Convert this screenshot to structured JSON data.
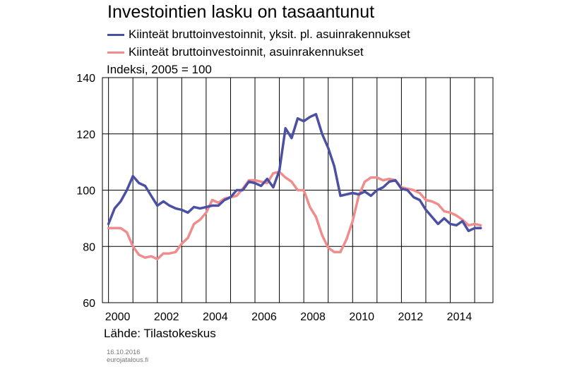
{
  "title": "Investointien lasku on tasaantunut",
  "unit_label": "Indeksi, 2005 = 100",
  "source": "Lähde: Tilastokeskus",
  "date_stamp": "16.10.2016",
  "site_stamp": "eurojatalous.fi",
  "colors": {
    "series1": "#4b50a3",
    "series2": "#f08c8c",
    "grid": "#000000"
  },
  "chart_data": {
    "type": "line",
    "title": "Investointien lasku on tasaantunut",
    "ylabel": "Indeksi, 2005 = 100",
    "xlim": [
      1999.75,
      2015.75
    ],
    "ylim": [
      60,
      140
    ],
    "yticks": [
      60,
      80,
      100,
      120,
      140
    ],
    "xticks": [
      "2000",
      "2002",
      "2004",
      "2006",
      "2008",
      "2010",
      "2012",
      "2014"
    ],
    "grid": true,
    "legend_position": "top-left",
    "x": [
      2000.0,
      2000.25,
      2000.5,
      2000.75,
      2001.0,
      2001.25,
      2001.5,
      2001.75,
      2002.0,
      2002.25,
      2002.5,
      2002.75,
      2003.0,
      2003.25,
      2003.5,
      2003.75,
      2004.0,
      2004.25,
      2004.5,
      2004.75,
      2005.0,
      2005.25,
      2005.5,
      2005.75,
      2006.0,
      2006.25,
      2006.5,
      2006.75,
      2007.0,
      2007.25,
      2007.5,
      2007.75,
      2008.0,
      2008.25,
      2008.5,
      2008.75,
      2009.0,
      2009.25,
      2009.5,
      2009.75,
      2010.0,
      2010.25,
      2010.5,
      2010.75,
      2011.0,
      2011.25,
      2011.5,
      2011.75,
      2012.0,
      2012.25,
      2012.5,
      2012.75,
      2013.0,
      2013.25,
      2013.5,
      2013.75,
      2014.0,
      2014.25,
      2014.5,
      2014.75,
      2015.0,
      2015.25
    ],
    "series": [
      {
        "name": "Kiinteät bruttoinvestoinnit, yksit. pl. asuinrakennukset",
        "color": "#4b50a3",
        "values": [
          88,
          93.5,
          96,
          100,
          105,
          102.5,
          101.5,
          98,
          94.5,
          96,
          94.5,
          93.5,
          93,
          92,
          94,
          93.5,
          94,
          94.5,
          94.5,
          96.5,
          97.5,
          100,
          100,
          103,
          102.5,
          101.5,
          104,
          101,
          107,
          122,
          118.5,
          125.5,
          124.5,
          126,
          127,
          120,
          115,
          108.5,
          98,
          98.5,
          99,
          98.5,
          99.5,
          98,
          100,
          101,
          103,
          103.5,
          100.5,
          100,
          97.5,
          96.5,
          93,
          90.5,
          88,
          90,
          88,
          87.5,
          89,
          85.5,
          86.5,
          86.5
        ]
      },
      {
        "name": "Kiinteät bruttoinvestoinnit, asuinrakennukset",
        "color": "#f08c8c",
        "values": [
          86.5,
          86.5,
          86.5,
          85,
          80,
          77,
          76,
          76.5,
          75.5,
          77.5,
          77.5,
          78,
          81,
          83,
          88,
          89.5,
          92,
          96.5,
          95.5,
          97,
          97.5,
          98,
          100.5,
          103.5,
          103.5,
          103,
          102.5,
          106,
          106.5,
          104.5,
          103,
          100,
          100,
          94,
          90.5,
          84,
          79.5,
          78,
          78,
          82.5,
          89,
          98,
          103,
          104.5,
          104.5,
          103.5,
          104,
          103.5,
          101,
          100.5,
          100,
          99,
          96.5,
          96,
          95,
          92.5,
          92,
          91,
          89.5,
          87.5,
          88,
          87.5
        ]
      }
    ]
  }
}
